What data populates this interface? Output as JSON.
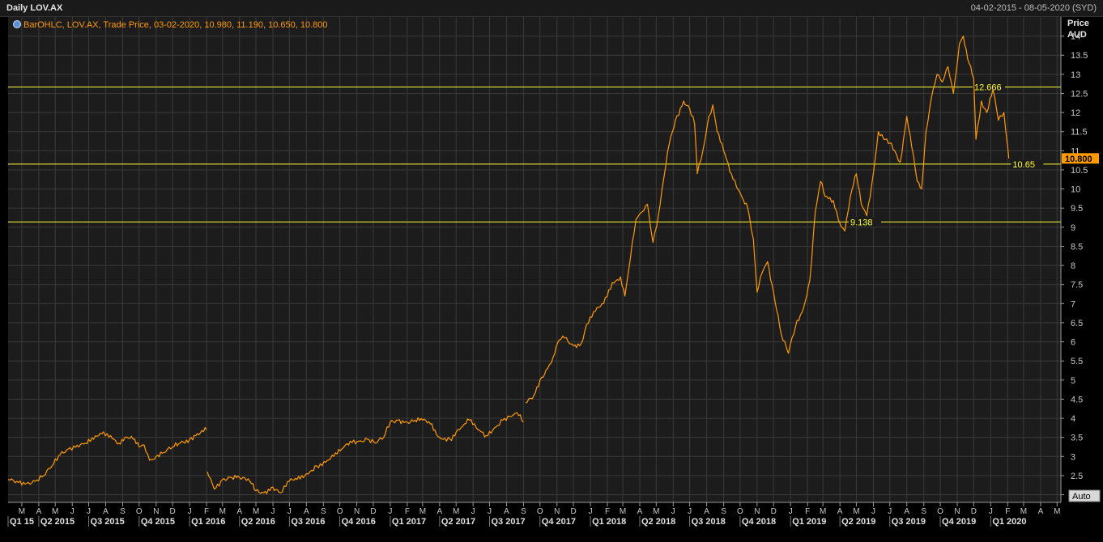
{
  "header": {
    "title": "Daily LOV.AX",
    "date_range": "04-02-2015 - 08-05-2020 (SYD)"
  },
  "legend": {
    "text": "BarOHLC, LOV.AX, Trade Price, 03-02-2020, 10.980, 11.190, 10.650, 10.800"
  },
  "axis": {
    "y_title_line1": "Price",
    "y_title_line2": "AUD",
    "auto_button": "Auto"
  },
  "colors": {
    "background": "#1c1c1c",
    "grid": "#3a3a3a",
    "price_line": "#ff9900",
    "horizontal_lines": "#ffff33",
    "last_price_box": "#ff9900"
  },
  "chart_data": {
    "type": "line",
    "ylim": [
      1.8,
      14.5
    ],
    "x_range": [
      "2015-02-04",
      "2020-05-08"
    ],
    "y_ticks": [
      2,
      2.5,
      3,
      3.5,
      4,
      4.5,
      5,
      5.5,
      6,
      6.5,
      7,
      7.5,
      8,
      8.5,
      9,
      9.5,
      10,
      10.5,
      11,
      11.5,
      12,
      12.5,
      13,
      13.5,
      14
    ],
    "grid": true,
    "last_price": "10.800",
    "horizontal_lines": [
      {
        "value": 12.666,
        "label": "12.666"
      },
      {
        "value": 10.65,
        "label": "10.65"
      },
      {
        "value": 9.138,
        "label": "9.138"
      }
    ],
    "month_labels": [
      {
        "date": "2015-03-01",
        "label": "M"
      },
      {
        "date": "2015-04-01",
        "label": "A"
      },
      {
        "date": "2015-05-01",
        "label": "M"
      },
      {
        "date": "2015-06-01",
        "label": "J"
      },
      {
        "date": "2015-07-01",
        "label": "J"
      },
      {
        "date": "2015-08-01",
        "label": "A"
      },
      {
        "date": "2015-09-01",
        "label": "S"
      },
      {
        "date": "2015-10-01",
        "label": "O"
      },
      {
        "date": "2015-11-01",
        "label": "N"
      },
      {
        "date": "2015-12-01",
        "label": "D"
      },
      {
        "date": "2016-01-01",
        "label": "J"
      },
      {
        "date": "2016-02-01",
        "label": "F"
      },
      {
        "date": "2016-03-01",
        "label": "M"
      },
      {
        "date": "2016-04-01",
        "label": "A"
      },
      {
        "date": "2016-05-01",
        "label": "M"
      },
      {
        "date": "2016-06-01",
        "label": "J"
      },
      {
        "date": "2016-07-01",
        "label": "J"
      },
      {
        "date": "2016-08-01",
        "label": "A"
      },
      {
        "date": "2016-09-01",
        "label": "S"
      },
      {
        "date": "2016-10-01",
        "label": "O"
      },
      {
        "date": "2016-11-01",
        "label": "N"
      },
      {
        "date": "2016-12-01",
        "label": "D"
      },
      {
        "date": "2017-01-01",
        "label": "J"
      },
      {
        "date": "2017-02-01",
        "label": "F"
      },
      {
        "date": "2017-03-01",
        "label": "M"
      },
      {
        "date": "2017-04-01",
        "label": "A"
      },
      {
        "date": "2017-05-01",
        "label": "M"
      },
      {
        "date": "2017-06-01",
        "label": "J"
      },
      {
        "date": "2017-07-01",
        "label": "J"
      },
      {
        "date": "2017-08-01",
        "label": "A"
      },
      {
        "date": "2017-09-01",
        "label": "S"
      },
      {
        "date": "2017-10-01",
        "label": "O"
      },
      {
        "date": "2017-11-01",
        "label": "N"
      },
      {
        "date": "2017-12-01",
        "label": "D"
      },
      {
        "date": "2018-01-01",
        "label": "J"
      },
      {
        "date": "2018-02-01",
        "label": "F"
      },
      {
        "date": "2018-03-01",
        "label": "M"
      },
      {
        "date": "2018-04-01",
        "label": "A"
      },
      {
        "date": "2018-05-01",
        "label": "M"
      },
      {
        "date": "2018-06-01",
        "label": "J"
      },
      {
        "date": "2018-07-01",
        "label": "J"
      },
      {
        "date": "2018-08-01",
        "label": "A"
      },
      {
        "date": "2018-09-01",
        "label": "S"
      },
      {
        "date": "2018-10-01",
        "label": "O"
      },
      {
        "date": "2018-11-01",
        "label": "N"
      },
      {
        "date": "2018-12-01",
        "label": "D"
      },
      {
        "date": "2019-01-01",
        "label": "J"
      },
      {
        "date": "2019-02-01",
        "label": "F"
      },
      {
        "date": "2019-03-01",
        "label": "M"
      },
      {
        "date": "2019-04-01",
        "label": "A"
      },
      {
        "date": "2019-05-01",
        "label": "M"
      },
      {
        "date": "2019-06-01",
        "label": "J"
      },
      {
        "date": "2019-07-01",
        "label": "J"
      },
      {
        "date": "2019-08-01",
        "label": "A"
      },
      {
        "date": "2019-09-01",
        "label": "S"
      },
      {
        "date": "2019-10-01",
        "label": "O"
      },
      {
        "date": "2019-11-01",
        "label": "N"
      },
      {
        "date": "2019-12-01",
        "label": "D"
      },
      {
        "date": "2020-01-01",
        "label": "J"
      },
      {
        "date": "2020-02-01",
        "label": "F"
      },
      {
        "date": "2020-03-01",
        "label": "M"
      },
      {
        "date": "2020-04-01",
        "label": "A"
      },
      {
        "date": "2020-05-01",
        "label": "M"
      }
    ],
    "quarter_labels": [
      {
        "date": "2015-02-04",
        "label": "Q1 15"
      },
      {
        "date": "2015-04-01",
        "label": "Q2 2015"
      },
      {
        "date": "2015-07-01",
        "label": "Q3 2015"
      },
      {
        "date": "2015-10-01",
        "label": "Q4 2015"
      },
      {
        "date": "2016-01-01",
        "label": "Q1 2016"
      },
      {
        "date": "2016-04-01",
        "label": "Q2 2016"
      },
      {
        "date": "2016-07-01",
        "label": "Q3 2016"
      },
      {
        "date": "2016-10-01",
        "label": "Q4 2016"
      },
      {
        "date": "2017-01-01",
        "label": "Q1 2017"
      },
      {
        "date": "2017-04-01",
        "label": "Q2 2017"
      },
      {
        "date": "2017-07-01",
        "label": "Q3 2017"
      },
      {
        "date": "2017-10-01",
        "label": "Q4 2017"
      },
      {
        "date": "2018-01-01",
        "label": "Q1 2018"
      },
      {
        "date": "2018-04-01",
        "label": "Q2 2018"
      },
      {
        "date": "2018-07-01",
        "label": "Q3 2018"
      },
      {
        "date": "2018-10-01",
        "label": "Q4 2018"
      },
      {
        "date": "2019-01-01",
        "label": "Q1 2019"
      },
      {
        "date": "2019-04-01",
        "label": "Q2 2019"
      },
      {
        "date": "2019-07-01",
        "label": "Q3 2019"
      },
      {
        "date": "2019-10-01",
        "label": "Q4 2019"
      },
      {
        "date": "2020-01-01",
        "label": "Q1 2020"
      }
    ],
    "series": [
      {
        "segments": [
          [
            [
              "2015-02-04",
              2.4
            ],
            [
              "2015-02-20",
              2.35
            ],
            [
              "2015-03-10",
              2.3
            ],
            [
              "2015-03-25",
              2.35
            ],
            [
              "2015-04-10",
              2.5
            ],
            [
              "2015-04-25",
              2.75
            ],
            [
              "2015-05-10",
              3.05
            ],
            [
              "2015-05-25",
              3.2
            ],
            [
              "2015-06-10",
              3.3
            ],
            [
              "2015-06-25",
              3.35
            ],
            [
              "2015-07-10",
              3.45
            ],
            [
              "2015-07-25",
              3.6
            ],
            [
              "2015-08-10",
              3.55
            ],
            [
              "2015-08-25",
              3.35
            ],
            [
              "2015-09-05",
              3.5
            ],
            [
              "2015-09-20",
              3.45
            ],
            [
              "2015-10-01",
              3.25
            ],
            [
              "2015-10-10",
              3.3
            ],
            [
              "2015-10-20",
              2.9
            ],
            [
              "2015-11-01",
              3.0
            ],
            [
              "2015-11-15",
              3.1
            ],
            [
              "2015-12-01",
              3.25
            ],
            [
              "2015-12-15",
              3.35
            ],
            [
              "2016-01-01",
              3.45
            ],
            [
              "2016-01-15",
              3.6
            ],
            [
              "2016-02-01",
              3.7
            ]
          ],
          [
            [
              "2016-02-02",
              2.6
            ],
            [
              "2016-02-15",
              2.15
            ],
            [
              "2016-03-01",
              2.4
            ],
            [
              "2016-03-15",
              2.45
            ],
            [
              "2016-04-01",
              2.45
            ],
            [
              "2016-04-20",
              2.35
            ],
            [
              "2016-05-01",
              2.1
            ],
            [
              "2016-05-15",
              2.05
            ],
            [
              "2016-06-01",
              2.2
            ],
            [
              "2016-06-15",
              2.05
            ],
            [
              "2016-07-01",
              2.35
            ],
            [
              "2016-07-15",
              2.4
            ],
            [
              "2016-08-01",
              2.55
            ],
            [
              "2016-08-20",
              2.75
            ],
            [
              "2016-09-05",
              2.85
            ],
            [
              "2016-09-20",
              3.0
            ],
            [
              "2016-10-05",
              3.2
            ],
            [
              "2016-10-20",
              3.4
            ],
            [
              "2016-11-05",
              3.4
            ],
            [
              "2016-11-20",
              3.45
            ],
            [
              "2016-12-05",
              3.35
            ],
            [
              "2016-12-20",
              3.5
            ],
            [
              "2017-01-01",
              3.9
            ],
            [
              "2017-01-15",
              3.95
            ],
            [
              "2017-02-01",
              3.9
            ],
            [
              "2017-02-15",
              3.95
            ],
            [
              "2017-03-01",
              3.95
            ],
            [
              "2017-03-15",
              3.85
            ],
            [
              "2017-04-01",
              3.5
            ],
            [
              "2017-04-20",
              3.45
            ],
            [
              "2017-05-10",
              3.75
            ],
            [
              "2017-05-25",
              3.95
            ],
            [
              "2017-06-10",
              3.7
            ],
            [
              "2017-06-25",
              3.55
            ],
            [
              "2017-07-10",
              3.75
            ],
            [
              "2017-07-25",
              3.95
            ],
            [
              "2017-08-10",
              4.05
            ],
            [
              "2017-08-20",
              4.15
            ],
            [
              "2017-09-01",
              3.9
            ]
          ],
          [
            [
              "2017-09-05",
              4.4
            ],
            [
              "2017-09-20",
              4.6
            ],
            [
              "2017-10-01",
              5.0
            ],
            [
              "2017-10-15",
              5.3
            ],
            [
              "2017-10-25",
              5.6
            ],
            [
              "2017-11-05",
              6.05
            ],
            [
              "2017-11-15",
              6.1
            ],
            [
              "2017-12-01",
              5.9
            ],
            [
              "2017-12-15",
              5.95
            ],
            [
              "2017-12-25",
              6.45
            ],
            [
              "2018-01-10",
              6.8
            ],
            [
              "2018-01-25",
              7.0
            ],
            [
              "2018-02-10",
              7.55
            ],
            [
              "2018-02-25",
              7.7
            ],
            [
              "2018-03-05",
              7.2
            ],
            [
              "2018-03-15",
              8.2
            ],
            [
              "2018-03-25",
              9.2
            ],
            [
              "2018-04-05",
              9.4
            ],
            [
              "2018-04-15",
              9.6
            ],
            [
              "2018-04-25",
              8.6
            ],
            [
              "2018-05-05",
              9.3
            ],
            [
              "2018-05-15",
              10.3
            ],
            [
              "2018-05-25",
              11.2
            ],
            [
              "2018-06-05",
              11.8
            ],
            [
              "2018-06-20",
              12.3
            ],
            [
              "2018-07-01",
              12.1
            ],
            [
              "2018-07-10",
              11.7
            ],
            [
              "2018-07-15",
              10.4
            ],
            [
              "2018-07-25",
              11.0
            ],
            [
              "2018-08-05",
              11.9
            ],
            [
              "2018-08-12",
              12.2
            ],
            [
              "2018-08-20",
              11.5
            ],
            [
              "2018-09-01",
              11.0
            ],
            [
              "2018-09-15",
              10.4
            ],
            [
              "2018-10-01",
              9.9
            ],
            [
              "2018-10-15",
              9.5
            ],
            [
              "2018-10-25",
              8.7
            ],
            [
              "2018-11-01",
              7.3
            ],
            [
              "2018-11-10",
              7.8
            ],
            [
              "2018-11-20",
              8.1
            ],
            [
              "2018-12-01",
              7.3
            ],
            [
              "2018-12-15",
              6.2
            ],
            [
              "2018-12-28",
              5.7
            ],
            [
              "2019-01-10",
              6.4
            ],
            [
              "2019-01-25",
              6.9
            ],
            [
              "2019-02-05",
              7.6
            ],
            [
              "2019-02-15",
              9.4
            ],
            [
              "2019-02-25",
              10.2
            ],
            [
              "2019-03-05",
              9.8
            ],
            [
              "2019-03-20",
              9.7
            ],
            [
              "2019-04-01",
              9.1
            ],
            [
              "2019-04-10",
              8.9
            ],
            [
              "2019-04-20",
              9.8
            ],
            [
              "2019-05-01",
              10.4
            ],
            [
              "2019-05-10",
              9.6
            ],
            [
              "2019-05-20",
              9.3
            ],
            [
              "2019-06-01",
              10.4
            ],
            [
              "2019-06-10",
              11.5
            ],
            [
              "2019-06-20",
              11.3
            ],
            [
              "2019-07-01",
              11.2
            ],
            [
              "2019-07-10",
              11.0
            ],
            [
              "2019-07-20",
              10.7
            ],
            [
              "2019-08-01",
              11.9
            ],
            [
              "2019-08-10",
              11.1
            ],
            [
              "2019-08-20",
              10.2
            ],
            [
              "2019-08-28",
              10.0
            ],
            [
              "2019-09-05",
              11.5
            ],
            [
              "2019-09-15",
              12.4
            ],
            [
              "2019-09-25",
              13.0
            ],
            [
              "2019-10-05",
              12.8
            ],
            [
              "2019-10-15",
              13.2
            ],
            [
              "2019-10-25",
              12.5
            ],
            [
              "2019-11-05",
              13.8
            ],
            [
              "2019-11-12",
              14.0
            ],
            [
              "2019-11-20",
              13.4
            ],
            [
              "2019-12-01",
              12.9
            ],
            [
              "2019-12-05",
              11.3
            ],
            [
              "2019-12-15",
              12.3
            ],
            [
              "2019-12-25",
              12.0
            ],
            [
              "2020-01-05",
              12.6
            ],
            [
              "2020-01-15",
              11.8
            ],
            [
              "2020-01-25",
              12.0
            ],
            [
              "2020-02-01",
              11.1
            ],
            [
              "2020-02-03",
              10.8
            ]
          ]
        ]
      }
    ]
  }
}
